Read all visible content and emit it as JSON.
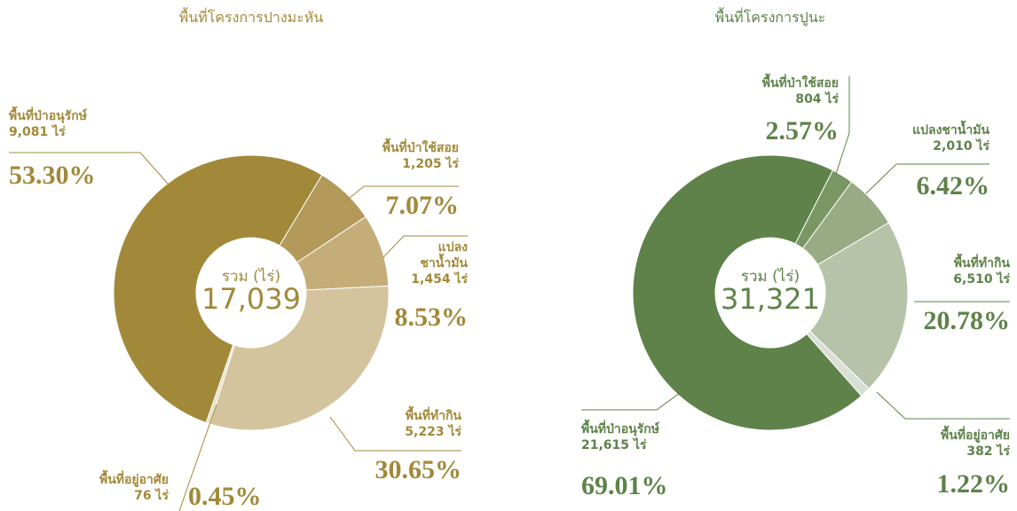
{
  "chart_data": [
    {
      "type": "donut",
      "title": "พื้นที่โครงการปางมะหัน",
      "center_label": "รวม (ไร่)",
      "total_label": "17,039",
      "text_color": "#a2893a",
      "categories": [
        "พื้นที่ป่าใช้สอย",
        "แปลง\nชาน้ำมัน",
        "พื้นที่ทำกิน",
        "พื้นที่อยู่อาศัย",
        "พื้นที่ป่าอนุรักษ์"
      ],
      "area_labels": [
        "1,205 ไร่",
        "1,454 ไร่",
        "5,223 ไร่",
        "76 ไร่",
        "9,081 ไร่"
      ],
      "values": [
        7.07,
        8.53,
        30.65,
        0.45,
        53.3
      ],
      "value_labels": [
        "7.07%",
        "8.53%",
        "30.65%",
        "0.45%",
        "53.30%"
      ],
      "colors": [
        "#b39a5a",
        "#c4ad78",
        "#d3c49e",
        "#e8dfc8",
        "#a2893a"
      ]
    },
    {
      "type": "donut",
      "title": "พื้นที่โครงการปูนะ",
      "center_label": "รวม (ไร่)",
      "total_label": "31,321",
      "text_color": "#5e8249",
      "categories": [
        "พื้นที่ป่าใช้สอย",
        "แปลงชาน้ำมัน",
        "พื้นที่ทำกิน",
        "พื้นที่อยู่อาศัย",
        "พื้นที่ป่าอนุรักษ์"
      ],
      "area_labels": [
        "804 ไร่",
        "2,010 ไร่",
        "6,510 ไร่",
        "382 ไร่",
        "21,615 ไร่"
      ],
      "values": [
        2.57,
        6.42,
        20.78,
        1.22,
        69.01
      ],
      "value_labels": [
        "2.57%",
        "6.42%",
        "20.78%",
        "1.22%",
        "69.01%"
      ],
      "colors": [
        "#7a9763",
        "#98ab84",
        "#b6c3a8",
        "#d9dfd2",
        "#5e8249"
      ]
    }
  ]
}
